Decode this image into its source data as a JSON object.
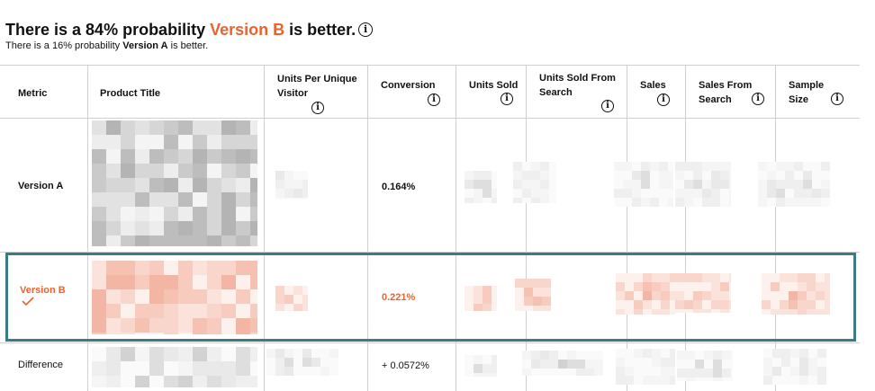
{
  "header": {
    "prefix": "There is a 84% probability ",
    "winner": "Version B",
    "suffix": " is better.",
    "sub_prefix": "There is a 16% probability ",
    "sub_loser": "Version A",
    "sub_suffix": " is better."
  },
  "table": {
    "columns": [
      {
        "label": "Metric"
      },
      {
        "label": "Product Title"
      },
      {
        "label": "Units Per Unique Visitor"
      },
      {
        "label": "Conversion"
      },
      {
        "label": "Units Sold"
      },
      {
        "label": "Units Sold From Search"
      },
      {
        "label": "Sales"
      },
      {
        "label": "Sales From Search"
      },
      {
        "label": "Sample Size"
      }
    ],
    "rows": [
      {
        "metric": "Version A",
        "conversion": "0.164%"
      },
      {
        "metric": "Version B",
        "conversion": "0.221%"
      },
      {
        "metric": "Difference",
        "conversion": "+ 0.0572%"
      }
    ]
  },
  "icons": {
    "info": "info-circle-icon",
    "winner_mark": "checkmark-icon"
  },
  "colors": {
    "accent": "#e8632f",
    "highlight_border": "#3a7c86",
    "grid": "#cfcfcf"
  }
}
